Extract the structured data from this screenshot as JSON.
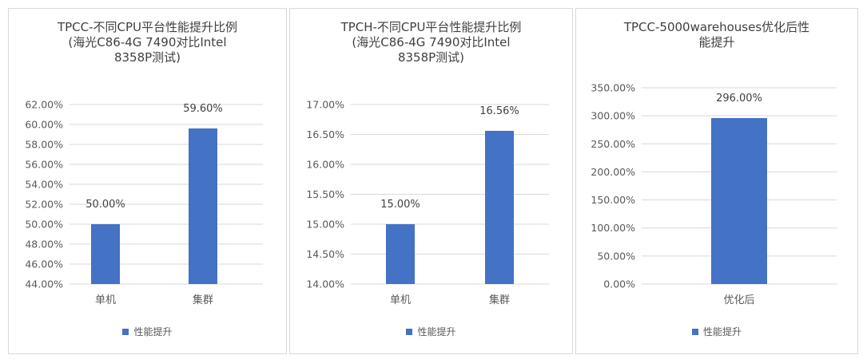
{
  "colors": {
    "bar": "#4472c4",
    "grid": "#d9d9d9"
  },
  "chart_data": [
    {
      "type": "bar",
      "title": "TPCC-不同CPU平台性能提升比例\n(海光C86-4G 7490对比Intel\n8358P测试)",
      "categories": [
        "单机",
        "集群"
      ],
      "series": [
        {
          "name": "性能提升",
          "values": [
            50.0,
            59.6
          ]
        }
      ],
      "data_labels": [
        "50.00%",
        "59.60%"
      ],
      "ylim": [
        44,
        62
      ],
      "yticks": [
        "44.00%",
        "46.00%",
        "48.00%",
        "50.00%",
        "52.00%",
        "54.00%",
        "56.00%",
        "58.00%",
        "60.00%",
        "62.00%"
      ],
      "grid": true,
      "legend": "bottom"
    },
    {
      "type": "bar",
      "title": "TPCH-不同CPU平台性能提升比例\n(海光C86-4G 7490对比Intel\n8358P测试)",
      "categories": [
        "单机",
        "集群"
      ],
      "series": [
        {
          "name": "性能提升",
          "values": [
            15.0,
            16.56
          ]
        }
      ],
      "data_labels": [
        "15.00%",
        "16.56%"
      ],
      "ylim": [
        14,
        17
      ],
      "yticks": [
        "14.00%",
        "14.50%",
        "15.00%",
        "15.50%",
        "16.00%",
        "16.50%",
        "17.00%"
      ],
      "grid": true,
      "legend": "bottom"
    },
    {
      "type": "bar",
      "title": "TPCC-5000warehouses优化后性\n能提升",
      "categories": [
        "优化后"
      ],
      "series": [
        {
          "name": "性能提升",
          "values": [
            296.0
          ]
        }
      ],
      "data_labels": [
        "296.00%"
      ],
      "ylim": [
        0,
        350
      ],
      "yticks": [
        "0.00%",
        "50.00%",
        "100.00%",
        "150.00%",
        "200.00%",
        "250.00%",
        "300.00%",
        "350.00%"
      ],
      "grid": true,
      "legend": "bottom"
    }
  ]
}
